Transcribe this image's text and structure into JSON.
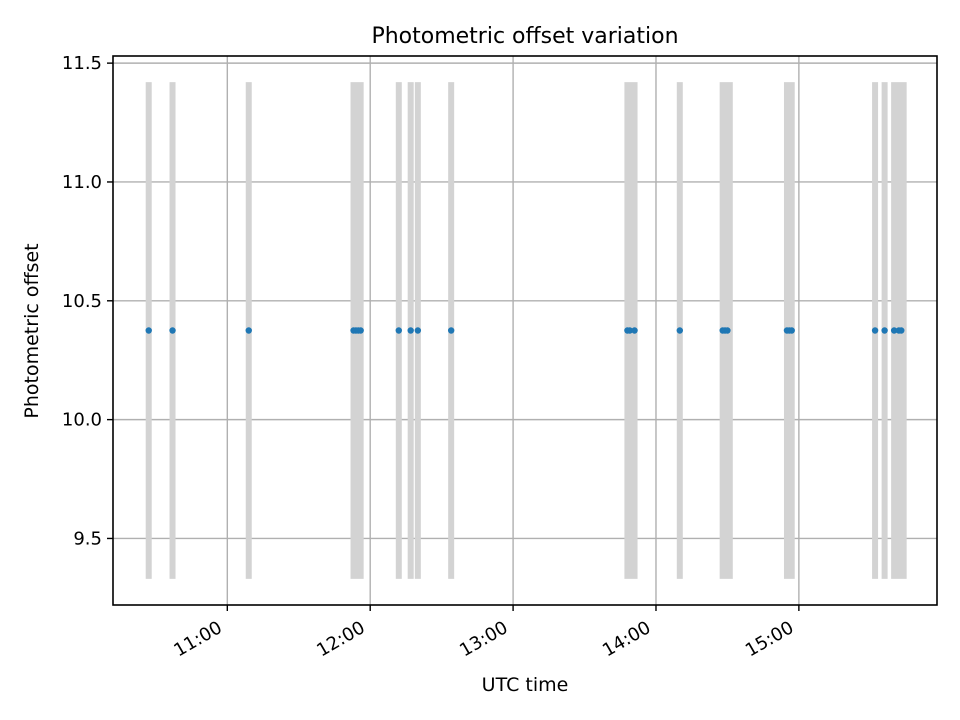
{
  "chart_data": {
    "type": "scatter",
    "title": "Photometric offset variation",
    "xlabel": "UTC time",
    "ylabel": "Photometric offset",
    "x_tick_labels": [
      "11:00",
      "12:00",
      "13:00",
      "14:00",
      "15:00"
    ],
    "x_tick_values": [
      "11:00",
      "12:00",
      "13:00",
      "14:00",
      "15:00"
    ],
    "xlim": [
      "10:12",
      "15:58"
    ],
    "y_tick_labels": [
      "9.5",
      "10.0",
      "10.5",
      "11.0",
      "11.5"
    ],
    "y_tick_values": [
      9.5,
      10.0,
      10.5,
      11.0,
      11.5
    ],
    "ylim": [
      9.22,
      11.53
    ],
    "grid": true,
    "marker_color": "#1f77b4",
    "band_color": "#d3d3d3",
    "band_ylim": [
      9.33,
      11.42
    ],
    "points": [
      {
        "x": "10:27",
        "y": 10.375
      },
      {
        "x": "10:37",
        "y": 10.375
      },
      {
        "x": "11:09",
        "y": 10.375
      },
      {
        "x": "11:53",
        "y": 10.375
      },
      {
        "x": "11:54",
        "y": 10.375
      },
      {
        "x": "11:55",
        "y": 10.375
      },
      {
        "x": "11:56",
        "y": 10.375
      },
      {
        "x": "12:12",
        "y": 10.375
      },
      {
        "x": "12:17",
        "y": 10.375
      },
      {
        "x": "12:20",
        "y": 10.375
      },
      {
        "x": "12:34",
        "y": 10.375
      },
      {
        "x": "13:48",
        "y": 10.375
      },
      {
        "x": "13:49",
        "y": 10.375
      },
      {
        "x": "13:51",
        "y": 10.375
      },
      {
        "x": "14:10",
        "y": 10.375
      },
      {
        "x": "14:28",
        "y": 10.375
      },
      {
        "x": "14:29",
        "y": 10.375
      },
      {
        "x": "14:30",
        "y": 10.375
      },
      {
        "x": "14:55",
        "y": 10.375
      },
      {
        "x": "14:56",
        "y": 10.375
      },
      {
        "x": "14:57",
        "y": 10.375
      },
      {
        "x": "15:32",
        "y": 10.375
      },
      {
        "x": "15:36",
        "y": 10.375
      },
      {
        "x": "15:40",
        "y": 10.375
      },
      {
        "x": "15:42",
        "y": 10.375
      },
      {
        "x": "15:43",
        "y": 10.375
      }
    ],
    "error_bands": [
      {
        "x0": "10:27",
        "x1": "10:27"
      },
      {
        "x0": "10:37",
        "x1": "10:37"
      },
      {
        "x0": "11:09",
        "x1": "11:09"
      },
      {
        "x0": "11:53",
        "x1": "11:56"
      },
      {
        "x0": "12:12",
        "x1": "12:12"
      },
      {
        "x0": "12:17",
        "x1": "12:17"
      },
      {
        "x0": "12:20",
        "x1": "12:20"
      },
      {
        "x0": "12:34",
        "x1": "12:34"
      },
      {
        "x0": "13:48",
        "x1": "13:51"
      },
      {
        "x0": "14:10",
        "x1": "14:10"
      },
      {
        "x0": "14:28",
        "x1": "14:31"
      },
      {
        "x0": "14:55",
        "x1": "14:57"
      },
      {
        "x0": "15:32",
        "x1": "15:32"
      },
      {
        "x0": "15:36",
        "x1": "15:36"
      },
      {
        "x0": "15:40",
        "x1": "15:44"
      }
    ]
  }
}
